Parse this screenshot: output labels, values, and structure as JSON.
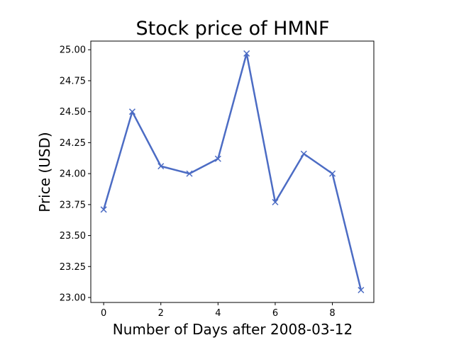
{
  "chart_data": {
    "type": "line",
    "title": "Stock price of HMNF",
    "xlabel": "Number of Days after 2008-03-12",
    "ylabel": "Price (USD)",
    "x": [
      0,
      1,
      2,
      3,
      4,
      5,
      6,
      7,
      8,
      9
    ],
    "series": [
      {
        "values": [
          23.71,
          24.5,
          24.06,
          24.0,
          24.12,
          24.97,
          23.77,
          24.16,
          24.0,
          23.06
        ],
        "color": "#4c6cc4",
        "marker": "x"
      }
    ],
    "xlim": [
      -0.45,
      9.45
    ],
    "ylim": [
      22.96,
      25.07
    ],
    "xticks": [
      0,
      2,
      4,
      6,
      8
    ],
    "yticks": [
      "23.00",
      "23.25",
      "23.50",
      "23.75",
      "24.00",
      "24.25",
      "24.50",
      "24.75",
      "25.00"
    ],
    "grid": false
  }
}
